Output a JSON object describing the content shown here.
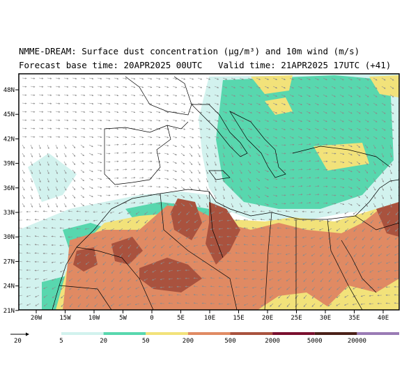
{
  "header": {
    "title_line": "NMME-DREAM: Surface dust concentration (µg/m³) and 10m wind (m/s)",
    "forecast_line": "Forecast base time: 20APR2025 00UTC   Valid time: 21APR2025 17UTC (+41)"
  },
  "map": {
    "lat_labels": [
      "48N",
      "45N",
      "42N",
      "39N",
      "36N",
      "33N",
      "30N",
      "27N",
      "24N",
      "21N"
    ],
    "lon_labels": [
      "20W",
      "15W",
      "10W",
      "5W",
      "0",
      "5E",
      "10E",
      "15E",
      "20E",
      "25E",
      "30E",
      "35E",
      "40E"
    ],
    "colors": {
      "land_clear": "#ffffff",
      "dust_5": "#d2f2ee",
      "dust_20": "#58d7ae",
      "dust_50": "#f2e27a",
      "dust_200": "#e08a63",
      "dust_500": "#a9523e",
      "dust_2000": "#7a0f2e",
      "dust_5000": "#4a2018",
      "dust_20000": "#9a7bb5",
      "wind_arrows": "#8c8c8c",
      "borders": "#000000"
    }
  },
  "legend": {
    "wind_reference": "20",
    "levels": [
      "5",
      "20",
      "50",
      "200",
      "500",
      "2000",
      "5000",
      "20000"
    ],
    "colors": [
      "#d2f2ee",
      "#58d7ae",
      "#f2e27a",
      "#e08a63",
      "#a9523e",
      "#7a0f2e",
      "#4a2018",
      "#9a7bb5"
    ]
  }
}
